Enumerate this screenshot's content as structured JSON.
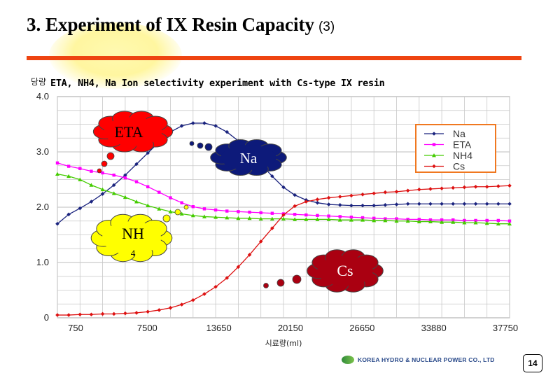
{
  "slide": {
    "title": "3. Experiment of  IX Resin Capacity",
    "title_suffix": "(3)",
    "subtitle": "ETA, NH4, Na Ion selectivity experiment with Cs-type IX resin",
    "y_axis_label": "당량",
    "company": "KOREA HYDRO & NUCLEAR POWER CO., LTD",
    "page_number": "14",
    "accent_color": "#ee4411"
  },
  "callouts": [
    {
      "key": "eta",
      "label": "ETA",
      "fill": "#ff0000",
      "text_color": "#000000"
    },
    {
      "key": "na",
      "label": "Na",
      "fill": "#0d1a7a",
      "text_color": "#ffffff"
    },
    {
      "key": "nh4",
      "label": "NH",
      "label2": "4",
      "fill": "#ffff00",
      "text_color": "#000000"
    },
    {
      "key": "cs",
      "label": "Cs",
      "fill": "#aa0011",
      "text_color": "#ffffff"
    }
  ],
  "chart_data": {
    "type": "line",
    "xlabel": "시료량(ml)",
    "ylabel": "당량",
    "x_tick_labels": [
      "750",
      "7500",
      "13650",
      "20150",
      "26650",
      "33880",
      "37750"
    ],
    "y_ticks": [
      "0",
      "1.0",
      "2.0",
      "3.0",
      "4.0"
    ],
    "ylim": [
      0,
      4.0
    ],
    "grid": true,
    "legend_position": "top-right",
    "x_index": [
      0,
      2,
      4,
      6,
      8,
      10,
      12,
      14,
      16,
      18,
      20,
      22,
      24,
      26,
      28,
      30,
      32,
      34,
      36,
      38,
      40,
      42,
      44,
      46,
      48,
      50,
      52,
      54,
      56,
      58,
      60,
      62,
      64,
      66,
      68,
      70,
      72,
      74,
      76,
      78,
      80
    ],
    "series": [
      {
        "name": "Na",
        "color": "#1a237e",
        "marker": "diamond",
        "values": [
          1.7,
          1.87,
          1.98,
          2.1,
          2.24,
          2.4,
          2.58,
          2.78,
          2.98,
          3.18,
          3.36,
          3.47,
          3.52,
          3.52,
          3.47,
          3.36,
          3.2,
          3.0,
          2.78,
          2.56,
          2.36,
          2.22,
          2.13,
          2.08,
          2.05,
          2.04,
          2.03,
          2.03,
          2.03,
          2.04,
          2.05,
          2.06,
          2.06,
          2.06,
          2.06,
          2.06,
          2.06,
          2.06,
          2.06,
          2.06,
          2.06
        ]
      },
      {
        "name": "ETA",
        "color": "#ff00ff",
        "marker": "square",
        "values": [
          2.8,
          2.74,
          2.7,
          2.65,
          2.62,
          2.58,
          2.53,
          2.46,
          2.37,
          2.27,
          2.17,
          2.08,
          2.01,
          1.97,
          1.95,
          1.93,
          1.92,
          1.91,
          1.9,
          1.89,
          1.88,
          1.87,
          1.86,
          1.85,
          1.84,
          1.83,
          1.82,
          1.81,
          1.8,
          1.79,
          1.79,
          1.78,
          1.78,
          1.77,
          1.77,
          1.77,
          1.76,
          1.76,
          1.76,
          1.76,
          1.75
        ]
      },
      {
        "name": "NH4",
        "color": "#44cc00",
        "marker": "triangle",
        "values": [
          2.6,
          2.56,
          2.5,
          2.4,
          2.32,
          2.25,
          2.18,
          2.1,
          2.03,
          1.97,
          1.92,
          1.88,
          1.85,
          1.83,
          1.82,
          1.81,
          1.8,
          1.8,
          1.79,
          1.79,
          1.79,
          1.78,
          1.78,
          1.78,
          1.78,
          1.77,
          1.77,
          1.77,
          1.76,
          1.76,
          1.75,
          1.75,
          1.74,
          1.74,
          1.73,
          1.73,
          1.72,
          1.72,
          1.71,
          1.7,
          1.7
        ]
      },
      {
        "name": "Cs",
        "color": "#dd1111",
        "marker": "diamond",
        "values": [
          0.05,
          0.05,
          0.06,
          0.06,
          0.07,
          0.07,
          0.08,
          0.09,
          0.11,
          0.14,
          0.18,
          0.24,
          0.32,
          0.43,
          0.56,
          0.72,
          0.92,
          1.14,
          1.38,
          1.62,
          1.86,
          2.02,
          2.1,
          2.14,
          2.17,
          2.19,
          2.21,
          2.23,
          2.25,
          2.27,
          2.28,
          2.3,
          2.32,
          2.33,
          2.34,
          2.35,
          2.36,
          2.37,
          2.37,
          2.38,
          2.39
        ]
      }
    ]
  }
}
